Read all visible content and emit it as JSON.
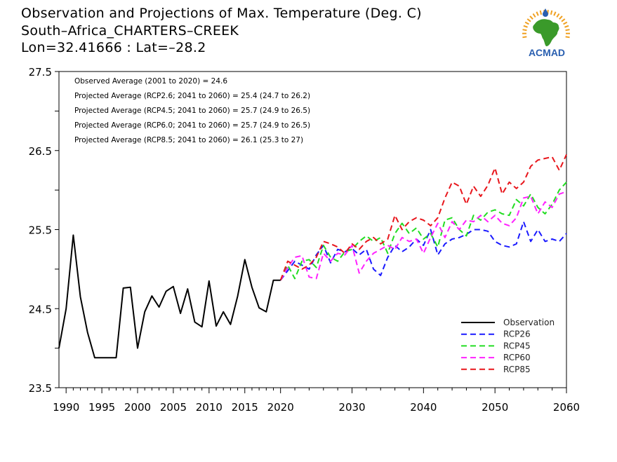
{
  "header": {
    "line1": "Observation and Projections of Max. Temperature (Deg. C)",
    "line2": "South–Africa_CHARTERS–CREEK",
    "line3": "Lon=32.41666 : Lat=–28.2"
  },
  "logo": {
    "text": "ACMAD",
    "icon": "africa-map-logo-icon"
  },
  "colors": {
    "observation": "#000000",
    "rcp26": "#1a1aff",
    "rcp45": "#22dd22",
    "rcp60": "#ff22ff",
    "rcp85": "#e8161c",
    "logo_green": "#3a9a2a",
    "logo_blue": "#2a5fb0",
    "logo_sun": "#f0a020"
  },
  "chart_data": {
    "type": "line",
    "xlim": [
      1989,
      2060
    ],
    "ylim": [
      23.5,
      27.5
    ],
    "x_ticks": [
      1990,
      1995,
      2000,
      2005,
      2010,
      2015,
      2020,
      2030,
      2040,
      2050,
      2060
    ],
    "y_ticks": [
      23.5,
      24.5,
      25.5,
      26.5,
      27.5
    ],
    "y_tick_labels": [
      "23.5",
      "24.5",
      "25.5",
      "26.5",
      "27.5"
    ],
    "grid": false,
    "legend_position": "bottom-right",
    "annotations": [
      "Observed Average (2001 to 2020) = 24.6",
      "Projected Average (RCP2.6; 2041 to 2060) = 25.4 (24.7 to 26.2)",
      "Projected Average (RCP4.5; 2041 to 2060) = 25.7 (24.9 to 26.5)",
      "Projected Average (RCP6.0; 2041 to 2060) = 25.7 (24.9 to 26.5)",
      "Projected Average (RCP8.5; 2041 to 2060) = 26.1 (25.3 to 27)"
    ],
    "series": [
      {
        "name": "Observation",
        "style": "solid",
        "x": [
          1989,
          1990,
          1991,
          1992,
          1993,
          1994,
          1995,
          1996,
          1997,
          1998,
          1999,
          2000,
          2001,
          2002,
          2003,
          2004,
          2005,
          2006,
          2007,
          2008,
          2009,
          2010,
          2011,
          2012,
          2013,
          2014,
          2015,
          2016,
          2017,
          2018,
          2019,
          2020
        ],
        "y": [
          24.0,
          24.5,
          25.43,
          24.65,
          24.2,
          23.88,
          23.88,
          23.88,
          23.88,
          24.76,
          24.77,
          24.0,
          24.46,
          24.66,
          24.52,
          24.72,
          24.78,
          24.44,
          24.75,
          24.33,
          24.27,
          24.85,
          24.28,
          24.46,
          24.3,
          24.66,
          25.12,
          24.77,
          24.51,
          24.46,
          24.86,
          24.86
        ]
      },
      {
        "name": "RCP26",
        "style": "dashed",
        "x": [
          2020,
          2021,
          2022,
          2023,
          2024,
          2025,
          2026,
          2027,
          2028,
          2029,
          2030,
          2031,
          2032,
          2033,
          2034,
          2035,
          2036,
          2037,
          2038,
          2039,
          2040,
          2041,
          2042,
          2043,
          2044,
          2045,
          2046,
          2047,
          2048,
          2049,
          2050,
          2051,
          2052,
          2053,
          2054,
          2055,
          2056,
          2057,
          2058,
          2059,
          2060
        ],
        "y": [
          24.86,
          24.98,
          25.1,
          25.05,
          25.0,
          25.18,
          25.3,
          25.08,
          25.25,
          25.22,
          25.26,
          25.18,
          25.25,
          25.0,
          24.92,
          25.15,
          25.3,
          25.22,
          25.28,
          25.38,
          25.3,
          25.5,
          25.18,
          25.32,
          25.38,
          25.4,
          25.44,
          25.5,
          25.5,
          25.48,
          25.35,
          25.3,
          25.28,
          25.32,
          25.6,
          25.35,
          25.5,
          25.35,
          25.38,
          25.35,
          25.45
        ]
      },
      {
        "name": "RCP45",
        "style": "dashed",
        "x": [
          2020,
          2021,
          2022,
          2023,
          2024,
          2025,
          2026,
          2027,
          2028,
          2029,
          2030,
          2031,
          2032,
          2033,
          2034,
          2035,
          2036,
          2037,
          2038,
          2039,
          2040,
          2041,
          2042,
          2043,
          2044,
          2045,
          2046,
          2047,
          2048,
          2049,
          2050,
          2051,
          2052,
          2053,
          2054,
          2055,
          2056,
          2057,
          2058,
          2059,
          2060
        ],
        "y": [
          24.86,
          25.05,
          24.88,
          25.1,
          25.12,
          25.02,
          25.3,
          25.15,
          25.1,
          25.22,
          25.25,
          25.35,
          25.42,
          25.35,
          25.4,
          25.2,
          25.45,
          25.58,
          25.45,
          25.52,
          25.38,
          25.45,
          25.28,
          25.62,
          25.65,
          25.5,
          25.42,
          25.68,
          25.62,
          25.72,
          25.75,
          25.7,
          25.68,
          25.88,
          25.8,
          25.95,
          25.78,
          25.7,
          25.82,
          26.0,
          26.1
        ]
      },
      {
        "name": "RCP60",
        "style": "dashed",
        "x": [
          2020,
          2021,
          2022,
          2023,
          2024,
          2025,
          2026,
          2027,
          2028,
          2029,
          2030,
          2031,
          2032,
          2033,
          2034,
          2035,
          2036,
          2037,
          2038,
          2039,
          2040,
          2041,
          2042,
          2043,
          2044,
          2045,
          2046,
          2047,
          2048,
          2049,
          2050,
          2051,
          2052,
          2053,
          2054,
          2055,
          2056,
          2057,
          2058,
          2059,
          2060
        ],
        "y": [
          24.86,
          25.02,
          25.15,
          25.17,
          24.9,
          24.88,
          25.2,
          25.1,
          25.2,
          25.18,
          25.3,
          24.95,
          25.1,
          25.2,
          25.25,
          25.3,
          25.25,
          25.4,
          25.35,
          25.38,
          25.2,
          25.4,
          25.58,
          25.4,
          25.6,
          25.5,
          25.62,
          25.6,
          25.68,
          25.6,
          25.68,
          25.58,
          25.55,
          25.65,
          25.9,
          25.92,
          25.7,
          25.85,
          25.78,
          25.95,
          25.98
        ]
      },
      {
        "name": "RCP85",
        "style": "dashed",
        "x": [
          2020,
          2021,
          2022,
          2023,
          2024,
          2025,
          2026,
          2027,
          2028,
          2029,
          2030,
          2031,
          2032,
          2033,
          2034,
          2035,
          2036,
          2037,
          2038,
          2039,
          2040,
          2041,
          2042,
          2043,
          2044,
          2045,
          2046,
          2047,
          2048,
          2049,
          2050,
          2051,
          2052,
          2053,
          2054,
          2055,
          2056,
          2057,
          2058,
          2059,
          2060
        ],
        "y": [
          24.86,
          25.1,
          25.05,
          25.0,
          25.05,
          25.15,
          25.35,
          25.32,
          25.28,
          25.2,
          25.32,
          25.25,
          25.35,
          25.4,
          25.32,
          25.38,
          25.68,
          25.5,
          25.6,
          25.65,
          25.62,
          25.55,
          25.65,
          25.9,
          26.1,
          26.05,
          25.82,
          26.05,
          25.92,
          26.06,
          26.28,
          25.95,
          26.1,
          26.02,
          26.1,
          26.3,
          26.38,
          26.4,
          26.42,
          26.25,
          26.45
        ]
      }
    ]
  }
}
